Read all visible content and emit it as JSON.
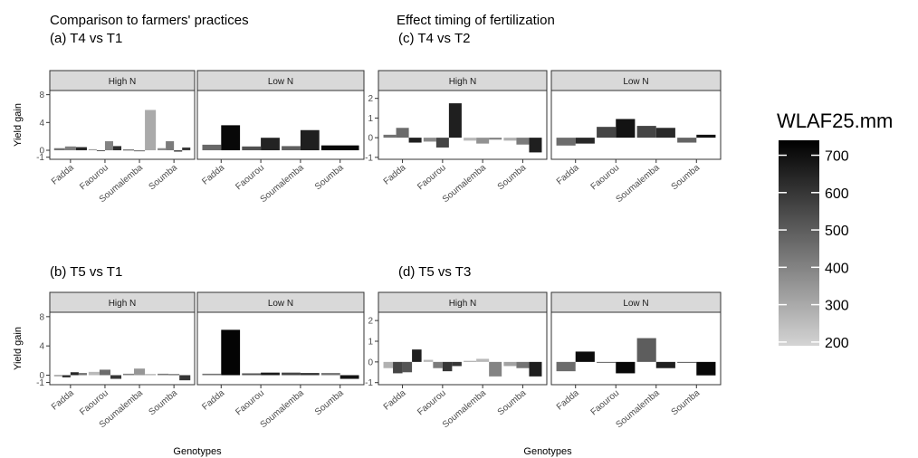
{
  "figure": {
    "group_titles": {
      "left": "Comparison to farmers' practices",
      "right": "Effect timing of fertilization"
    },
    "x_axis_title": "Genotypes",
    "y_axis_title": "Yield gain"
  },
  "legend": {
    "title": "WLAF25.mm",
    "ticks": [
      "700",
      "600",
      "500",
      "400",
      "300",
      "200"
    ],
    "tick_values": [
      700,
      600,
      500,
      400,
      300,
      200
    ],
    "range": [
      190,
      740
    ],
    "colors": {
      "low": "#d4d4d4",
      "high": "#000000"
    }
  },
  "chart_data": [
    {
      "type": "bar",
      "title": "(a) T4 vs T1",
      "ylabel": "Yield gain",
      "xlabel": "",
      "ylim": [
        -1.3,
        8.6
      ],
      "yticks": [
        "8",
        "4",
        "0",
        "-1"
      ],
      "ytick_values": [
        8,
        4,
        0,
        -1
      ],
      "categories": [
        "Fadda",
        "Faourou",
        "Soumalemba",
        "Soumba"
      ],
      "facets": [
        {
          "label": "High N",
          "bars": [
            {
              "genotype": "Fadda",
              "values": [
                0.3,
                0.55,
                0.45
              ],
              "wlaf": [
                440,
                410,
                640
              ]
            },
            {
              "genotype": "Faourou",
              "values": [
                0.15,
                -0.1,
                1.3,
                0.6
              ],
              "wlaf": [
                330,
                520,
                400,
                620
              ]
            },
            {
              "genotype": "Soumalemba",
              "values": [
                0.1,
                -0.15,
                5.8
              ],
              "wlaf": [
                540,
                430,
                300
              ]
            },
            {
              "genotype": "Soumba",
              "values": [
                0.3,
                1.3,
                -0.2,
                0.4
              ],
              "wlaf": [
                380,
                420,
                560,
                590
              ]
            }
          ]
        },
        {
          "label": "Low N",
          "bars": [
            {
              "genotype": "Fadda",
              "values": [
                0.8,
                3.6
              ],
              "wlaf": [
                470,
                720
              ]
            },
            {
              "genotype": "Faourou",
              "values": [
                0.55,
                1.8
              ],
              "wlaf": [
                530,
                650
              ]
            },
            {
              "genotype": "Soumalemba",
              "values": [
                0.6,
                2.9
              ],
              "wlaf": [
                490,
                660
              ]
            },
            {
              "genotype": "Soumba",
              "values": [
                0.7
              ],
              "wlaf": [
                720
              ]
            }
          ]
        }
      ]
    },
    {
      "type": "bar",
      "title": "(c) T4 vs T2",
      "ylabel": "",
      "xlabel": "",
      "ylim": [
        -1.1,
        2.4
      ],
      "yticks": [
        "2",
        "1",
        "0",
        "-1"
      ],
      "ytick_values": [
        2,
        1,
        0,
        -1
      ],
      "categories": [
        "Fadda",
        "Faourou",
        "Soumalemba",
        "Soumba"
      ],
      "facets": [
        {
          "label": "High N",
          "bars": [
            {
              "genotype": "Fadda",
              "values": [
                0.15,
                0.5,
                -0.25
              ],
              "wlaf": [
                440,
                460,
                660
              ]
            },
            {
              "genotype": "Faourou",
              "values": [
                -0.2,
                -0.5,
                1.75
              ],
              "wlaf": [
                380,
                560,
                660
              ]
            },
            {
              "genotype": "Soumalemba",
              "values": [
                -0.15,
                -0.3,
                -0.1
              ],
              "wlaf": [
                260,
                360,
                400
              ]
            },
            {
              "genotype": "Soumba",
              "values": [
                -0.15,
                -0.35,
                -0.75
              ],
              "wlaf": [
                280,
                420,
                660
              ]
            }
          ]
        },
        {
          "label": "Low N",
          "bars": [
            {
              "genotype": "Fadda",
              "values": [
                -0.4,
                -0.3
              ],
              "wlaf": [
                460,
                640
              ]
            },
            {
              "genotype": "Faourou",
              "values": [
                0.55,
                0.95
              ],
              "wlaf": [
                560,
                690
              ]
            },
            {
              "genotype": "Soumalemba",
              "values": [
                0.6,
                0.5
              ],
              "wlaf": [
                560,
                630
              ]
            },
            {
              "genotype": "Soumba",
              "values": [
                -0.25,
                0.15
              ],
              "wlaf": [
                480,
                690
              ]
            }
          ]
        }
      ]
    },
    {
      "type": "bar",
      "title": "(b) T5 vs T1",
      "ylabel": "Yield gain",
      "xlabel": "Genotypes",
      "ylim": [
        -1.3,
        8.6
      ],
      "yticks": [
        "8",
        "4",
        "0",
        "-1"
      ],
      "ytick_values": [
        8,
        4,
        0,
        -1
      ],
      "categories": [
        "Fadda",
        "Faourou",
        "Soumalemba",
        "Soumba"
      ],
      "facets": [
        {
          "label": "High N",
          "bars": [
            {
              "genotype": "Fadda",
              "values": [
                -0.1,
                -0.3,
                0.4,
                0.3
              ],
              "wlaf": [
                460,
                620,
                640,
                440
              ]
            },
            {
              "genotype": "Faourou",
              "values": [
                0.45,
                0.75,
                -0.5
              ],
              "wlaf": [
                260,
                460,
                600
              ]
            },
            {
              "genotype": "Soumalemba",
              "values": [
                0.2,
                0.9,
                0.15
              ],
              "wlaf": [
                400,
                350,
                300
              ]
            },
            {
              "genotype": "Soumba",
              "values": [
                0.2,
                0.15,
                -0.7
              ],
              "wlaf": [
                420,
                480,
                600
              ]
            }
          ]
        },
        {
          "label": "Low N",
          "bars": [
            {
              "genotype": "Fadda",
              "values": [
                0.2,
                6.2
              ],
              "wlaf": [
                440,
                730
              ]
            },
            {
              "genotype": "Faourou",
              "values": [
                0.25,
                0.35
              ],
              "wlaf": [
                520,
                670
              ]
            },
            {
              "genotype": "Soumalemba",
              "values": [
                0.35,
                0.3
              ],
              "wlaf": [
                560,
                600
              ]
            },
            {
              "genotype": "Soumba",
              "values": [
                0.3,
                -0.5
              ],
              "wlaf": [
                440,
                690
              ]
            }
          ]
        }
      ]
    },
    {
      "type": "bar",
      "title": "(d) T5 vs T3",
      "ylabel": "",
      "xlabel": "Genotypes",
      "ylim": [
        -1.1,
        2.4
      ],
      "yticks": [
        "2",
        "1",
        "0",
        "-1"
      ],
      "ytick_values": [
        2,
        1,
        0,
        -1
      ],
      "categories": [
        "Fadda",
        "Faourou",
        "Soumalemba",
        "Soumba"
      ],
      "facets": [
        {
          "label": "High N",
          "bars": [
            {
              "genotype": "Fadda",
              "values": [
                -0.3,
                -0.55,
                -0.5,
                0.6
              ],
              "wlaf": [
                280,
                560,
                520,
                660
              ]
            },
            {
              "genotype": "Faourou",
              "values": [
                0.1,
                -0.3,
                -0.45,
                -0.2
              ],
              "wlaf": [
                260,
                420,
                600,
                600
              ]
            },
            {
              "genotype": "Soumalemba",
              "values": [
                0.05,
                0.15,
                -0.7
              ],
              "wlaf": [
                300,
                260,
                400
              ]
            },
            {
              "genotype": "Soumba",
              "values": [
                -0.2,
                -0.3,
                -0.7
              ],
              "wlaf": [
                320,
                440,
                660
              ]
            }
          ]
        },
        {
          "label": "Low N",
          "bars": [
            {
              "genotype": "Fadda",
              "values": [
                -0.45,
                0.5
              ],
              "wlaf": [
                460,
                710
              ]
            },
            {
              "genotype": "Faourou",
              "values": [
                -0.05,
                -0.55
              ],
              "wlaf": [
                440,
                720
              ]
            },
            {
              "genotype": "Soumalemba",
              "values": [
                1.15,
                -0.3
              ],
              "wlaf": [
                500,
                660
              ]
            },
            {
              "genotype": "Soumba",
              "values": [
                -0.05,
                -0.65
              ],
              "wlaf": [
                460,
                720
              ]
            }
          ]
        }
      ]
    }
  ]
}
